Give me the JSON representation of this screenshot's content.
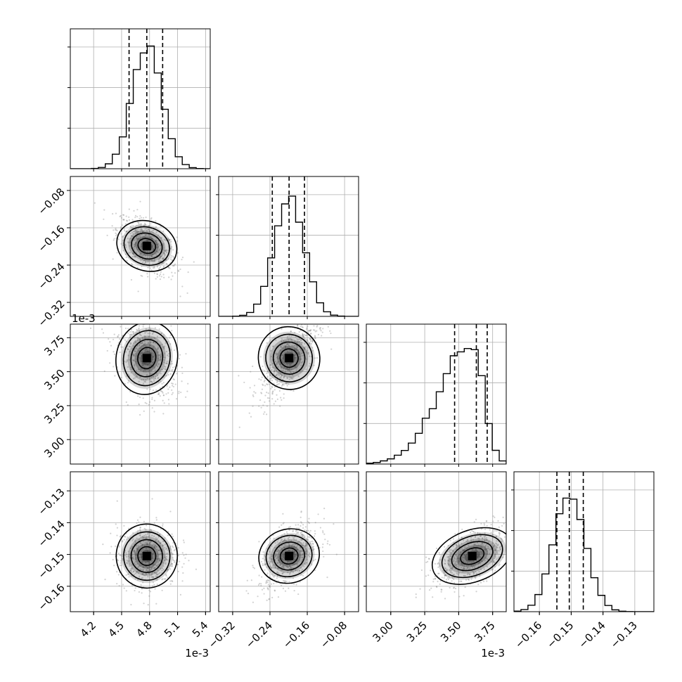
{
  "chart_data": {
    "type": "corner",
    "parameters": [
      {
        "offset_label": "1e-3",
        "range": [
          3.95,
          5.45
        ],
        "ticks": [
          4.2,
          4.5,
          4.8,
          5.1,
          5.4
        ],
        "tick_labels": [
          "4.2",
          "4.5",
          "4.8",
          "5.1",
          "5.4"
        ],
        "mean": 4.77,
        "sigma": 0.16,
        "quantiles": [
          4.58,
          4.77,
          4.94
        ]
      },
      {
        "offset_label": "",
        "range": [
          -0.35,
          -0.05
        ],
        "ticks": [
          -0.32,
          -0.24,
          -0.16,
          -0.08
        ],
        "tick_labels": [
          "−0.32",
          "−0.24",
          "−0.16",
          "−0.08"
        ],
        "mean": -0.199,
        "sigma": 0.032,
        "quantiles": [
          -0.235,
          -0.199,
          -0.166
        ]
      },
      {
        "offset_label": "1e-3",
        "range": [
          2.82,
          3.85
        ],
        "ticks": [
          3.0,
          3.25,
          3.5,
          3.75
        ],
        "tick_labels": [
          "3.00",
          "3.25",
          "3.50",
          "3.75"
        ],
        "mean": 3.6,
        "sigma": 0.15,
        "quantiles": [
          3.47,
          3.63,
          3.71
        ]
      },
      {
        "offset_label": "",
        "range": [
          -0.168,
          -0.124
        ],
        "ticks": [
          -0.16,
          -0.15,
          -0.14,
          -0.13
        ],
        "tick_labels": [
          "−0.16",
          "−0.15",
          "−0.14",
          "−0.13"
        ],
        "mean": -0.1505,
        "sigma": 0.005,
        "quantiles": [
          -0.1545,
          -0.1506,
          -0.1462
        ]
      }
    ],
    "hist_quantile_lines": "16%, 50%, 84%",
    "contour_levels": 4,
    "grid": true
  },
  "colors": {
    "axis": "#000000",
    "grid": "#b0b0b0",
    "points": "#7f7f7f",
    "contour": "#000000"
  }
}
